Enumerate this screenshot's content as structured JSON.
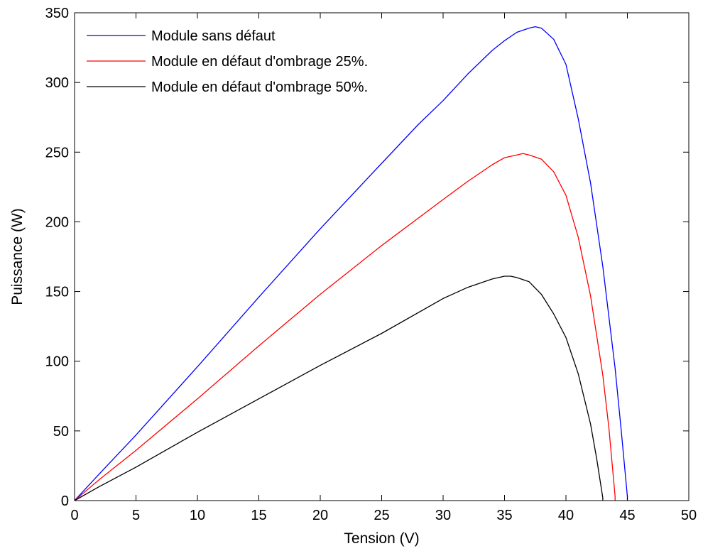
{
  "chart_data": {
    "type": "line",
    "title": "",
    "xlabel": "Tension (V)",
    "ylabel": "Puissance (W)",
    "xlim": [
      0,
      50
    ],
    "ylim": [
      0,
      350
    ],
    "xticks": [
      0,
      5,
      10,
      15,
      20,
      25,
      30,
      35,
      40,
      45,
      50
    ],
    "yticks": [
      0,
      50,
      100,
      150,
      200,
      250,
      300,
      350
    ],
    "grid": false,
    "legend_position": "top-left",
    "series": [
      {
        "name": "Module sans défaut",
        "color": "#0000ff",
        "x": [
          0,
          2,
          5,
          10,
          15,
          20,
          25,
          28,
          30,
          32,
          34,
          35,
          36,
          37,
          37.5,
          38,
          39,
          40,
          41,
          42,
          43,
          44,
          44.5,
          45,
          45
        ],
        "y": [
          0,
          19,
          47,
          96,
          146,
          195,
          242,
          270,
          287,
          306,
          323,
          330,
          336,
          339,
          340,
          339,
          331,
          313,
          274,
          228,
          168,
          95,
          50,
          3,
          0
        ]
      },
      {
        "name": "Module en défaut d'ombrage 25%.",
        "color": "#ff0000",
        "x": [
          0,
          2,
          5,
          10,
          15,
          20,
          25,
          30,
          32,
          34,
          35,
          36,
          36.5,
          37,
          38,
          39,
          40,
          41,
          42,
          43,
          43.5,
          44,
          44
        ],
        "y": [
          0,
          15,
          36,
          73,
          111,
          148,
          183,
          216,
          229,
          241,
          246,
          248,
          249,
          248,
          245,
          236,
          219,
          189,
          147,
          90,
          52,
          3,
          0
        ]
      },
      {
        "name": "Module en défaut d'ombrage 50%.",
        "color": "#000000",
        "x": [
          0,
          2,
          5,
          10,
          15,
          20,
          25,
          30,
          32,
          34,
          35,
          35.5,
          36,
          37,
          38,
          39,
          40,
          41,
          42,
          42.5,
          43,
          43
        ],
        "y": [
          0,
          10,
          24,
          49,
          73,
          97,
          120,
          145,
          153,
          159,
          161,
          161,
          160,
          157,
          148,
          134,
          117,
          91,
          55,
          30,
          2,
          0
        ]
      }
    ]
  }
}
